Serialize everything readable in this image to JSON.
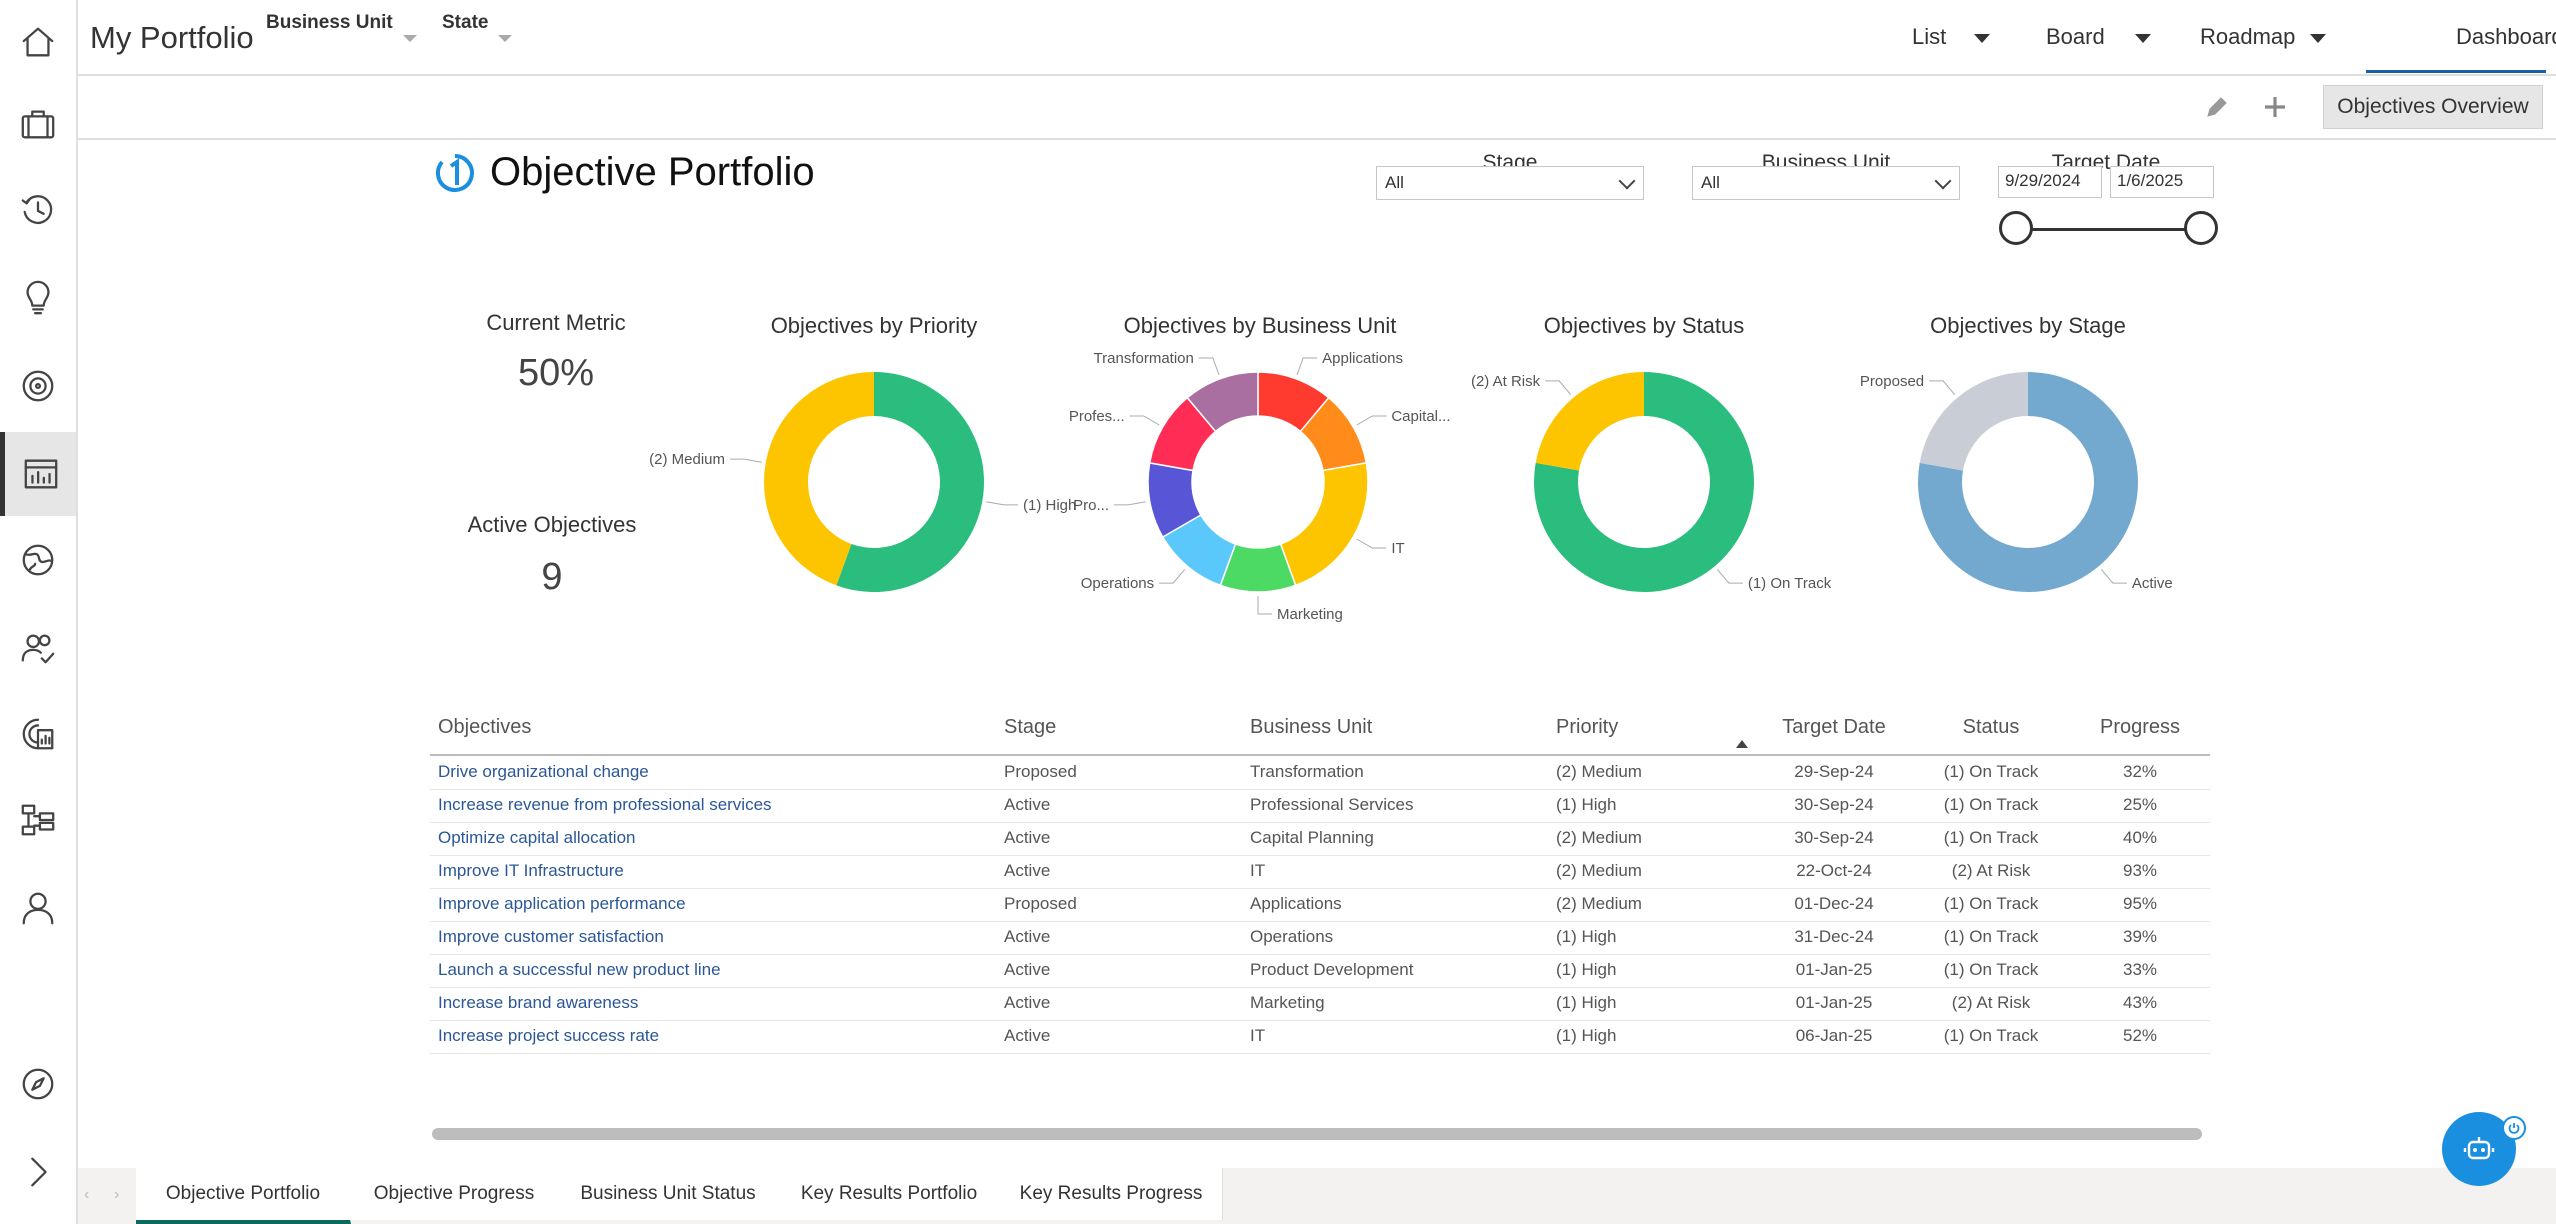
{
  "header": {
    "title": "My Portfolio",
    "filters": [
      "Business Unit",
      "State"
    ],
    "views": [
      {
        "label": "List",
        "has_menu": true
      },
      {
        "label": "Board",
        "has_menu": true
      },
      {
        "label": "Roadmap",
        "has_menu": true
      },
      {
        "label": "Dashboard",
        "has_menu": false,
        "active": true
      }
    ]
  },
  "toolbar": {
    "overview_button": "Objectives Overview"
  },
  "sidebar": {
    "icons": [
      "home-icon",
      "briefcase-icon",
      "history-icon",
      "lightbulb-icon",
      "target-icon",
      "dashboard-icon",
      "globe-icon",
      "people-icon",
      "report-icon",
      "hierarchy-icon",
      "user-icon",
      "compass-icon",
      "chevron-right-icon"
    ],
    "active_index": 5
  },
  "report": {
    "title": "Objective Portfolio",
    "slicers": {
      "stage": {
        "label": "Stage",
        "value": "All"
      },
      "business_unit": {
        "label": "Business Unit",
        "value": "All"
      },
      "target_date": {
        "label": "Target Date",
        "from": "9/29/2024",
        "to": "1/6/2025"
      }
    },
    "cards": [
      {
        "label": "Current Metric",
        "value": "50%"
      },
      {
        "label": "Active Objectives",
        "value": "9"
      }
    ],
    "table": {
      "columns": [
        "Objectives",
        "Stage",
        "Business Unit",
        "Priority",
        "Target Date",
        "Status",
        "Progress"
      ],
      "sort_column": "Target Date",
      "rows": [
        [
          "Drive organizational change",
          "Proposed",
          "Transformation",
          "(2) Medium",
          "29-Sep-24",
          "(1) On Track",
          "32%"
        ],
        [
          "Increase revenue from professional services",
          "Active",
          "Professional Services",
          "(1) High",
          "30-Sep-24",
          "(1) On Track",
          "25%"
        ],
        [
          "Optimize capital allocation",
          "Active",
          "Capital Planning",
          "(2) Medium",
          "30-Sep-24",
          "(1) On Track",
          "40%"
        ],
        [
          "Improve IT Infrastructure",
          "Active",
          "IT",
          "(2) Medium",
          "22-Oct-24",
          "(2) At Risk",
          "93%"
        ],
        [
          "Improve application performance",
          "Proposed",
          "Applications",
          "(2) Medium",
          "01-Dec-24",
          "(1) On Track",
          "95%"
        ],
        [
          "Improve customer satisfaction",
          "Active",
          "Operations",
          "(1) High",
          "31-Dec-24",
          "(1) On Track",
          "39%"
        ],
        [
          "Launch a successful new product line",
          "Active",
          "Product Development",
          "(1) High",
          "01-Jan-25",
          "(1) On Track",
          "33%"
        ],
        [
          "Increase brand awareness",
          "Active",
          "Marketing",
          "(1) High",
          "01-Jan-25",
          "(2) At Risk",
          "43%"
        ],
        [
          "Increase project success rate",
          "Active",
          "IT",
          "(1) High",
          "06-Jan-25",
          "(1) On Track",
          "52%"
        ]
      ]
    }
  },
  "page_tabs": [
    "Objective Portfolio",
    "Objective Progress",
    "Business Unit Status",
    "Key Results Portfolio",
    "Key Results Progress"
  ],
  "active_page_tab": 0,
  "chart_data": [
    {
      "type": "pie",
      "donut": true,
      "title": "Objectives by Priority",
      "categories": [
        "(1) High",
        "(2) Medium"
      ],
      "values": [
        5,
        4
      ],
      "colors": [
        "#2bbd7e",
        "#fdc500"
      ]
    },
    {
      "type": "pie",
      "donut": true,
      "title": "Objectives by Business Unit",
      "categories": [
        "Applications",
        "Capital...",
        "IT",
        "Marketing",
        "Operations",
        "Pro...",
        "Profes...",
        "Transformation"
      ],
      "values": [
        1,
        1,
        2,
        1,
        1,
        1,
        1,
        1
      ],
      "colors": [
        "#ff3b30",
        "#ff8c1a",
        "#fdc500",
        "#4cd964",
        "#5ac8fa",
        "#5856d6",
        "#ff2d55",
        "#a96fa0"
      ]
    },
    {
      "type": "pie",
      "donut": true,
      "title": "Objectives by Status",
      "categories": [
        "(1) On Track",
        "(2) At Risk"
      ],
      "values": [
        7,
        2
      ],
      "colors": [
        "#2bbd7e",
        "#fdc500"
      ]
    },
    {
      "type": "pie",
      "donut": true,
      "title": "Objectives by Stage",
      "categories": [
        "Active",
        "Proposed"
      ],
      "values": [
        7,
        2
      ],
      "colors": [
        "#74a9cf",
        "#c9ced6"
      ]
    }
  ]
}
